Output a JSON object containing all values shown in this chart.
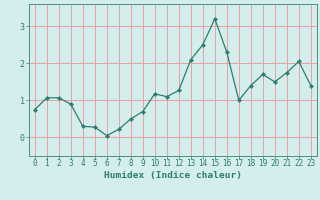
{
  "x": [
    0,
    1,
    2,
    3,
    4,
    5,
    6,
    7,
    8,
    9,
    10,
    11,
    12,
    13,
    14,
    15,
    16,
    17,
    18,
    19,
    20,
    21,
    22,
    23
  ],
  "y": [
    0.75,
    1.07,
    1.07,
    0.9,
    0.3,
    0.28,
    0.05,
    0.22,
    0.5,
    0.7,
    1.18,
    1.1,
    1.27,
    2.1,
    2.5,
    3.2,
    2.3,
    1.0,
    1.4,
    1.7,
    1.5,
    1.75,
    2.05,
    1.4
  ],
  "line_color": "#2e7d6e",
  "marker": "D",
  "marker_size": 2.2,
  "xlabel": "Humidex (Indice chaleur)",
  "xlim": [
    -0.5,
    23.5
  ],
  "ylim": [
    -0.5,
    3.6
  ],
  "yticks": [
    0,
    1,
    2,
    3
  ],
  "xticks": [
    0,
    1,
    2,
    3,
    4,
    5,
    6,
    7,
    8,
    9,
    10,
    11,
    12,
    13,
    14,
    15,
    16,
    17,
    18,
    19,
    20,
    21,
    22,
    23
  ],
  "bg_color": "#d4eeed",
  "grid_color": "#e8a0a0",
  "axes_color": "#4a9080",
  "tick_color": "#2e7d6e",
  "label_color": "#2e7d6e",
  "tick_fontsize": 5.5,
  "xlabel_fontsize": 6.8,
  "linewidth": 0.9
}
